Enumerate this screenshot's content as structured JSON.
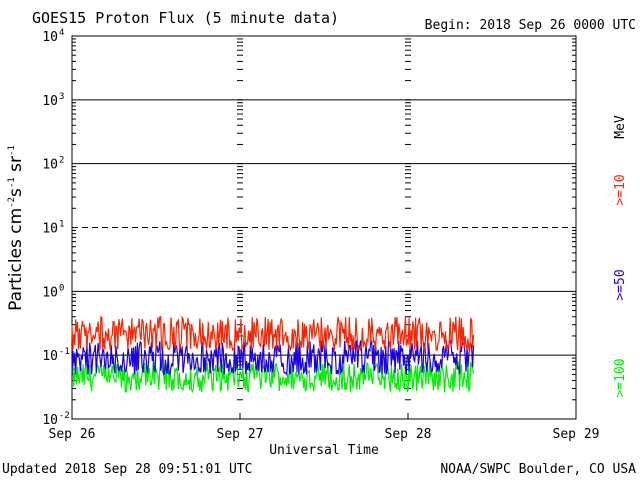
{
  "chart_data": {
    "type": "line",
    "title": "GOES15 Proton Flux (5 minute data)",
    "begin_label": "Begin: 2018 Sep 26 0000 UTC",
    "xlabel": "Universal Time",
    "ylabel": "Particles cm^-2 s^-1 sr^-1",
    "ylabel_parts": {
      "base": "Particles cm",
      "e1": "-2",
      "s": "s",
      "e2": "-1",
      "sr": " sr",
      "e3": "-1"
    },
    "yscale": "log",
    "ylim": [
      0.01,
      10000
    ],
    "ytick_base": "10",
    "ytick_exponents": [
      "-2",
      "-1",
      "0",
      "1",
      "2",
      "3",
      "4"
    ],
    "xlim_days": [
      0,
      3
    ],
    "x_tick_labels": [
      "Sep 26",
      "Sep 27",
      "Sep 28",
      "Sep 29"
    ],
    "dashed_reference_level": 10,
    "series": [
      {
        "name": ">=10",
        "color": "#ff2200",
        "typical_flux": 0.2,
        "range": [
          0.12,
          0.4
        ],
        "data_end_day": 2.39
      },
      {
        "name": ">=50",
        "color": "#1a00e6",
        "typical_flux": 0.085,
        "range": [
          0.05,
          0.17
        ],
        "data_end_day": 2.39
      },
      {
        "name": ">=100",
        "color": "#00ee00",
        "typical_flux": 0.045,
        "range": [
          0.026,
          0.08
        ],
        "data_end_day": 2.39
      }
    ],
    "legend_unit": "MeV"
  },
  "footer": {
    "updated": "Updated 2018 Sep 28 09:51:01 UTC",
    "source": "NOAA/SWPC Boulder, CO USA"
  }
}
